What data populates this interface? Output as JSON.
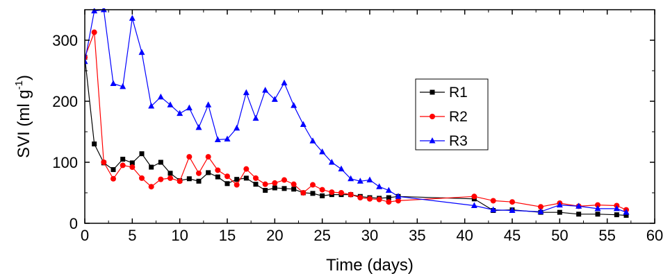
{
  "chart_data": {
    "type": "line",
    "xlabel": "Time (days)",
    "ylabel": {
      "main": "SVI (ml g",
      "sup": "-1",
      "close": ")"
    },
    "xlim": [
      0,
      60
    ],
    "ylim": [
      0,
      350
    ],
    "xticks": [
      0,
      5,
      10,
      15,
      20,
      25,
      30,
      35,
      40,
      45,
      50,
      55,
      60
    ],
    "yticks": [
      0,
      100,
      200,
      300
    ],
    "grid": false,
    "legend": "center-right",
    "series": [
      {
        "name": "R1",
        "color": "#000000",
        "marker": "square",
        "x": [
          0,
          1,
          2,
          3,
          4,
          5,
          6,
          7,
          8,
          9,
          10,
          11,
          12,
          13,
          14,
          15,
          16,
          17,
          18,
          19,
          20,
          21,
          22,
          23,
          24,
          25,
          26,
          27,
          28,
          29,
          30,
          31,
          32,
          33,
          41,
          43,
          45,
          48,
          50,
          52,
          54,
          56,
          57
        ],
        "y": [
          272,
          130,
          99,
          88,
          105,
          99,
          114,
          92,
          100,
          82,
          70,
          73,
          69,
          83,
          76,
          65,
          72,
          74,
          64,
          54,
          58,
          57,
          56,
          50,
          49,
          45,
          47,
          47,
          47,
          44,
          42,
          41,
          42,
          44,
          40,
          21,
          22,
          18,
          18,
          15,
          15,
          14,
          13
        ]
      },
      {
        "name": "R2",
        "color": "#ff0000",
        "marker": "circle",
        "x": [
          0,
          1,
          2,
          3,
          4,
          5,
          6,
          7,
          8,
          9,
          10,
          11,
          12,
          13,
          14,
          15,
          16,
          17,
          18,
          19,
          20,
          21,
          22,
          23,
          24,
          25,
          26,
          27,
          28,
          29,
          30,
          31,
          32,
          33,
          41,
          43,
          45,
          48,
          50,
          52,
          54,
          56,
          57
        ],
        "y": [
          272,
          313,
          100,
          73,
          95,
          92,
          74,
          60,
          72,
          74,
          69,
          109,
          82,
          109,
          87,
          77,
          63,
          89,
          74,
          64,
          66,
          71,
          64,
          50,
          63,
          55,
          51,
          50,
          47,
          42,
          40,
          39,
          35,
          37,
          44,
          37,
          35,
          27,
          33,
          28,
          30,
          29,
          22
        ]
      },
      {
        "name": "R3",
        "color": "#0000ff",
        "marker": "triangle",
        "x": [
          0,
          1,
          2,
          3,
          4,
          5,
          6,
          7,
          8,
          9,
          10,
          11,
          12,
          13,
          14,
          15,
          16,
          17,
          18,
          19,
          20,
          21,
          22,
          23,
          24,
          25,
          26,
          27,
          28,
          29,
          30,
          31,
          32,
          33,
          41,
          43,
          45,
          48,
          50,
          52,
          54,
          56,
          57
        ],
        "y": [
          265,
          348,
          350,
          229,
          224,
          336,
          280,
          192,
          207,
          194,
          180,
          189,
          157,
          194,
          137,
          138,
          156,
          214,
          172,
          218,
          203,
          230,
          193,
          162,
          135,
          117,
          100,
          89,
          73,
          69,
          71,
          60,
          54,
          44,
          29,
          22,
          21,
          19,
          30,
          28,
          24,
          24,
          18
        ]
      }
    ]
  }
}
